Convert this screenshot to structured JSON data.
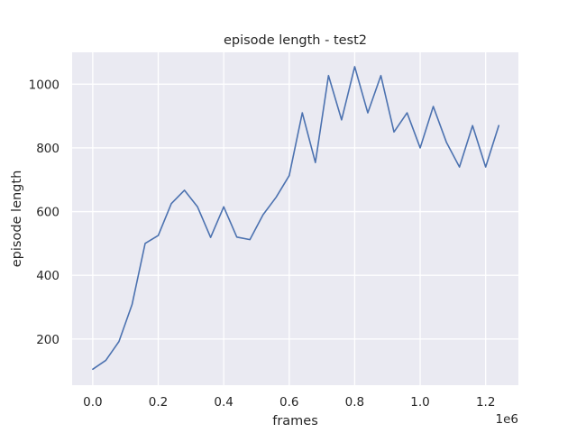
{
  "chart_data": {
    "type": "line",
    "title": "episode length - test2",
    "xlabel": "frames",
    "ylabel": "episode length",
    "x_offset_label": "1e6",
    "xlim": [
      -0.063,
      1.3
    ],
    "ylim": [
      55,
      1100
    ],
    "xticks": [
      0.0,
      0.2,
      0.4,
      0.6,
      0.8,
      1.0,
      1.2
    ],
    "xtick_labels": [
      "0.0",
      "0.2",
      "0.4",
      "0.6",
      "0.8",
      "1.0",
      "1.2"
    ],
    "yticks": [
      200,
      400,
      600,
      800,
      1000
    ],
    "ytick_labels": [
      "200",
      "400",
      "600",
      "800",
      "1000"
    ],
    "grid": true,
    "background_color": "#eaeaf2",
    "grid_color": "#ffffff",
    "line_color": "#4c72b0",
    "series": [
      {
        "x": [
          0.0,
          0.04,
          0.08,
          0.12,
          0.16,
          0.2,
          0.24,
          0.28,
          0.32,
          0.36,
          0.4,
          0.44,
          0.48,
          0.52,
          0.56,
          0.6,
          0.64,
          0.68,
          0.72,
          0.76,
          0.8,
          0.84,
          0.88,
          0.92,
          0.96,
          1.0,
          1.04,
          1.08,
          1.12,
          1.16,
          1.2,
          1.24
        ],
        "values": [
          105,
          133,
          192,
          308,
          500,
          525,
          625,
          667,
          615,
          519,
          615,
          520,
          512,
          590,
          645,
          713,
          910,
          754,
          1027,
          888,
          1055,
          910,
          1027,
          850,
          910,
          800,
          930,
          818,
          740,
          870,
          740,
          870
        ]
      }
    ]
  }
}
